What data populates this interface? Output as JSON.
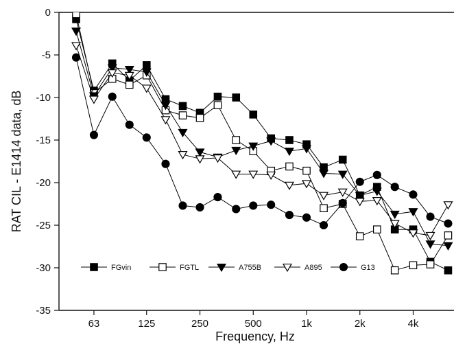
{
  "chart_data": {
    "type": "line",
    "xlabel": "Frequency, Hz",
    "ylabel": "RAT CIL - E1414 data, dB",
    "xscale": "log",
    "xlim": [
      40,
      6800
    ],
    "ylim": [
      -35,
      0
    ],
    "yticks": [
      0,
      -5,
      -10,
      -15,
      -20,
      -25,
      -30,
      -35
    ],
    "xticks": [
      {
        "value": 63,
        "label": "63"
      },
      {
        "value": 125,
        "label": "125"
      },
      {
        "value": 250,
        "label": "250"
      },
      {
        "value": 500,
        "label": "500"
      },
      {
        "value": 1000,
        "label": "1k"
      },
      {
        "value": 2000,
        "label": "2k"
      },
      {
        "value": 4000,
        "label": "4k"
      }
    ],
    "x": [
      50,
      63,
      80,
      100,
      125,
      160,
      200,
      250,
      315,
      400,
      500,
      630,
      800,
      1000,
      1250,
      1600,
      2000,
      2500,
      3150,
      4000,
      5000,
      6300
    ],
    "legend_position": "bottom",
    "series": [
      {
        "name": "FGvin",
        "marker": "square-filled",
        "values": [
          -0.8,
          -9.2,
          -6.0,
          -8.0,
          -6.2,
          -10.2,
          -11.0,
          -11.8,
          -9.9,
          -10.0,
          -12.0,
          -14.8,
          -15.0,
          -15.5,
          -18.2,
          -17.3,
          -21.5,
          -20.5,
          -25.5,
          -25.5,
          -29.3,
          -30.3
        ]
      },
      {
        "name": "FGTL",
        "marker": "square-open",
        "values": [
          -0.2,
          -9.5,
          -7.8,
          -8.5,
          -7.4,
          -11.5,
          -12.1,
          -12.4,
          -10.9,
          -15.0,
          -16.3,
          -18.6,
          -18.1,
          -18.6,
          -23.0,
          -22.5,
          -26.3,
          -25.5,
          -30.3,
          -29.7,
          -29.6,
          -26.2
        ]
      },
      {
        "name": "A755B",
        "marker": "triangle-down-filled",
        "values": [
          -2.2,
          -9.8,
          -6.5,
          -6.7,
          -7.0,
          -10.9,
          -14.1,
          -16.4,
          -17.0,
          -16.2,
          -15.7,
          -15.1,
          -16.3,
          -16.0,
          -18.9,
          -19.0,
          -21.5,
          -21.0,
          -23.7,
          -23.4,
          -27.2,
          -27.4
        ]
      },
      {
        "name": "A895",
        "marker": "triangle-down-open",
        "values": [
          -3.9,
          -10.2,
          -7.1,
          -7.4,
          -8.9,
          -12.6,
          -16.7,
          -17.2,
          -17.1,
          -19.0,
          -19.0,
          -19.1,
          -20.3,
          -20.1,
          -21.5,
          -21.1,
          -22.2,
          -22.1,
          -24.8,
          -25.9,
          -26.2,
          -22.6
        ]
      },
      {
        "name": "G13",
        "marker": "circle-filled",
        "values": [
          -5.3,
          -14.4,
          -9.9,
          -13.2,
          -14.7,
          -17.8,
          -22.7,
          -22.9,
          -21.7,
          -23.1,
          -22.7,
          -22.6,
          -23.8,
          -24.1,
          -25.0,
          -22.4,
          -19.9,
          -19.1,
          -20.5,
          -21.4,
          -24.0,
          -24.8
        ]
      }
    ]
  }
}
